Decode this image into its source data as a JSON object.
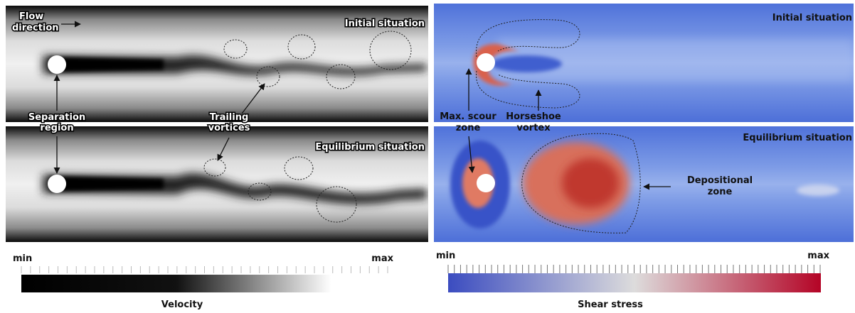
{
  "left": {
    "top": {
      "flow_label": [
        "Flow",
        "direction"
      ],
      "situation": "Initial situation"
    },
    "separation_label": [
      "Separation",
      "region"
    ],
    "trailing_label": [
      "Trailing",
      "vortices"
    ],
    "bottom": {
      "situation": "Equilibrium situation"
    }
  },
  "right": {
    "top": {
      "situation": "Initial situation",
      "scour_label": [
        "Max. scour",
        "zone"
      ],
      "horseshoe_label": [
        "Horseshoe",
        "vortex"
      ]
    },
    "bottom": {
      "situation": "Equilibrium situation",
      "depositional_label": [
        "Depositional",
        "zone"
      ]
    }
  },
  "colorbars": [
    {
      "min": "min",
      "max": "max",
      "title": "Velocity"
    },
    {
      "min": "min",
      "max": "max",
      "title": "Shear stress"
    }
  ]
}
